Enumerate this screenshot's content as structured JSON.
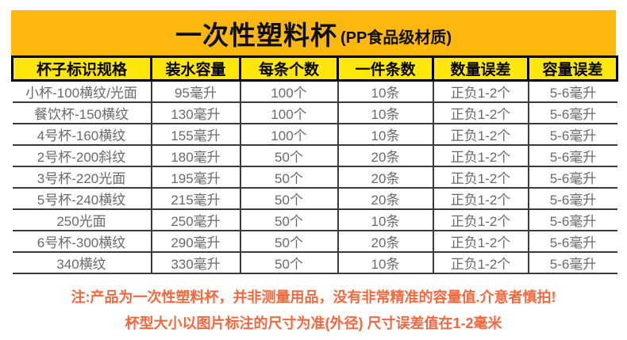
{
  "banner": {
    "title": "一次性塑料杯",
    "subtitle": "(PP食品级材质)",
    "bg_color": "#fcb80e",
    "text_color": "#0d0d0d"
  },
  "table": {
    "header_bg_color": "#ffe70c",
    "border_color": "#3a3a3a",
    "header_border_color": "#000000",
    "body_text_color": "#6a6a6a",
    "columns": [
      "杯子标识规格",
      "装水容量",
      "每条个数",
      "一件条数",
      "数量误差",
      "容量误差"
    ],
    "rows": [
      [
        "小杯-100横纹/光面",
        "95毫升",
        "100个",
        "10条",
        "正负1-2个",
        "5-6毫升"
      ],
      [
        "餐饮杯-150横纹",
        "130毫升",
        "100个",
        "10条",
        "正负1-2个",
        "5-6毫升"
      ],
      [
        "4号杯-160横纹",
        "155毫升",
        "100个",
        "10条",
        "正负1-2个",
        "5-6毫升"
      ],
      [
        "2号杯-200斜纹",
        "180毫升",
        "50个",
        "20条",
        "正负1-2个",
        "5-6毫升"
      ],
      [
        "3号杯-220光面",
        "195毫升",
        "50个",
        "20条",
        "正负1-2个",
        "5-6毫升"
      ],
      [
        "5号杯-240横纹",
        "215毫升",
        "50个",
        "20条",
        "正负1-2个",
        "5-6毫升"
      ],
      [
        "250光面",
        "250毫升",
        "50个",
        "10条",
        "正负1-2个",
        "5-6毫升"
      ],
      [
        "6号杯-300横纹",
        "290毫升",
        "50个",
        "20条",
        "正负1-2个",
        "5-6毫升"
      ],
      [
        "340横纹",
        "330毫升",
        "50个",
        "10条",
        "正负1-2个",
        "5-6毫升"
      ]
    ]
  },
  "notes": {
    "color": "#f3693f",
    "line1": "注:产品为一次性塑料杯，并非测量用品，没有非常精准的容量值.介意者慎拍!",
    "line2": "杯型大小以图片标注的尺寸为准(外径) 尺寸误差值在1-2毫米"
  }
}
